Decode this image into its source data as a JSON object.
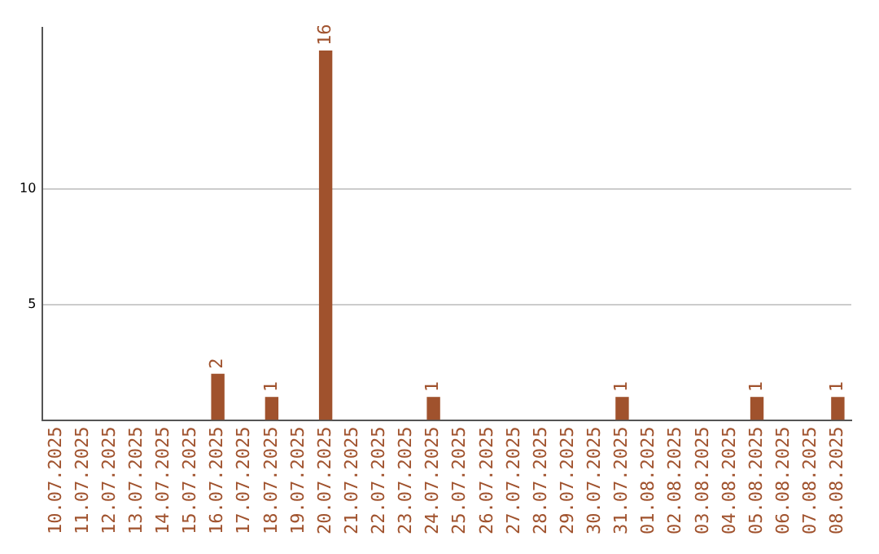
{
  "chart_data": {
    "type": "bar",
    "categories": [
      "10.07.2025",
      "11.07.2025",
      "12.07.2025",
      "13.07.2025",
      "14.07.2025",
      "15.07.2025",
      "16.07.2025",
      "17.07.2025",
      "18.07.2025",
      "19.07.2025",
      "20.07.2025",
      "21.07.2025",
      "22.07.2025",
      "23.07.2025",
      "24.07.2025",
      "25.07.2025",
      "26.07.2025",
      "27.07.2025",
      "28.07.2025",
      "29.07.2025",
      "30.07.2025",
      "31.07.2025",
      "01.08.2025",
      "02.08.2025",
      "03.08.2025",
      "04.08.2025",
      "05.08.2025",
      "06.08.2025",
      "07.08.2025",
      "08.08.2025"
    ],
    "values": [
      0,
      0,
      0,
      0,
      0,
      0,
      2,
      0,
      1,
      0,
      16,
      0,
      0,
      0,
      1,
      0,
      0,
      0,
      0,
      0,
      0,
      1,
      0,
      0,
      0,
      0,
      1,
      0,
      0,
      1
    ],
    "value_labels": [
      null,
      null,
      null,
      null,
      null,
      null,
      "2",
      null,
      "1",
      null,
      "16",
      null,
      null,
      null,
      "1",
      null,
      null,
      null,
      null,
      null,
      null,
      "1",
      null,
      null,
      null,
      null,
      "1",
      null,
      null,
      "1"
    ],
    "color": "#a0522d",
    "ylim": [
      0,
      17
    ],
    "yticks": [
      5,
      10
    ],
    "grid": "y"
  }
}
